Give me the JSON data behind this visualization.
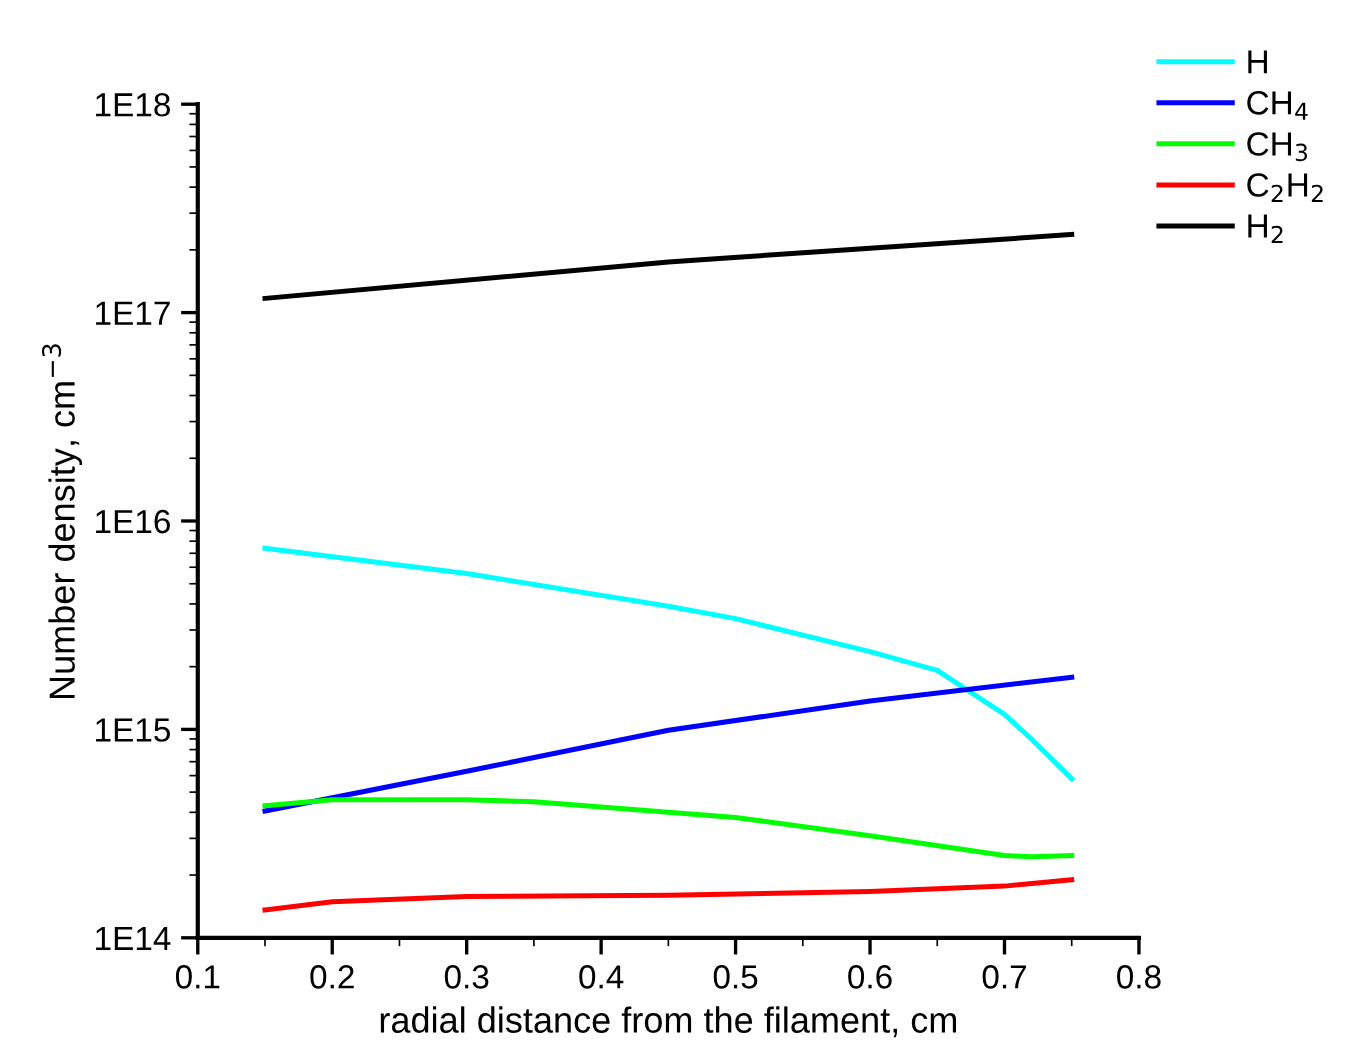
{
  "chart_data": {
    "type": "line",
    "xlabel": "radial distance from the filament, cm",
    "ylabel": "Number density, cm$^{−3}$",
    "log": "y",
    "grid": false,
    "legend": "top right",
    "marker": "none",
    "line_style": "solid",
    "xlim": [
      0.1,
      0.8
    ],
    "xticks": [
      0.1,
      0.2,
      0.3,
      0.4,
      0.5,
      0.6,
      0.7,
      0.8
    ],
    "ylim": [
      100000000000000.0,
      1e+18
    ],
    "yticks": [
      {
        "value": 100000000000000.0,
        "label": "1E14"
      },
      {
        "value": 1000000000000000.0,
        "label": "1E15"
      },
      {
        "value": 1e+16,
        "label": "1E16"
      },
      {
        "value": 1e+17,
        "label": "1E17"
      },
      {
        "value": 1e+18,
        "label": "1E18"
      }
    ],
    "series": [
      {
        "name": "H",
        "color": "#00ffff",
        "x": [
          0.15,
          0.3,
          0.45,
          0.5,
          0.6,
          0.65,
          0.7,
          0.72,
          0.75
        ],
        "values": [
          7400000000000000.0,
          5600000000000000.0,
          3900000000000000.0,
          3400000000000000.0,
          2360000000000000.0,
          1920000000000000.0,
          1180000000000000.0,
          900000000000000.0,
          580000000000000.0
        ]
      },
      {
        "name": "CH$_{4}$",
        "color": "#0000ff",
        "x": [
          0.15,
          0.3,
          0.45,
          0.6,
          0.75
        ],
        "values": [
          406000000000000.0,
          630000000000000.0,
          990000000000000.0,
          1370000000000000.0,
          1780000000000000.0
        ]
      },
      {
        "name": "CH$_{3}$",
        "color": "#00ff00",
        "x": [
          0.15,
          0.2,
          0.3,
          0.35,
          0.45,
          0.5,
          0.6,
          0.7,
          0.72,
          0.75
        ],
        "values": [
          430000000000000.0,
          460000000000000.0,
          460000000000000.0,
          450000000000000.0,
          400000000000000.0,
          378000000000000.0,
          309000000000000.0,
          248000000000000.0,
          245000000000000.0,
          248000000000000.0
        ]
      },
      {
        "name": "C$_{2}$H$_{2}$",
        "color": "#ff0000",
        "x": [
          0.15,
          0.2,
          0.3,
          0.45,
          0.6,
          0.7,
          0.75
        ],
        "values": [
          136000000000000.0,
          149000000000000.0,
          158000000000000.0,
          160000000000000.0,
          167000000000000.0,
          177000000000000.0,
          190000000000000.0
        ]
      },
      {
        "name": "H$_{2}$",
        "color": "#000000",
        "x": [
          0.15,
          0.45,
          0.75
        ],
        "values": [
          1.17e+17,
          1.75e+17,
          2.37e+17
        ]
      }
    ]
  }
}
